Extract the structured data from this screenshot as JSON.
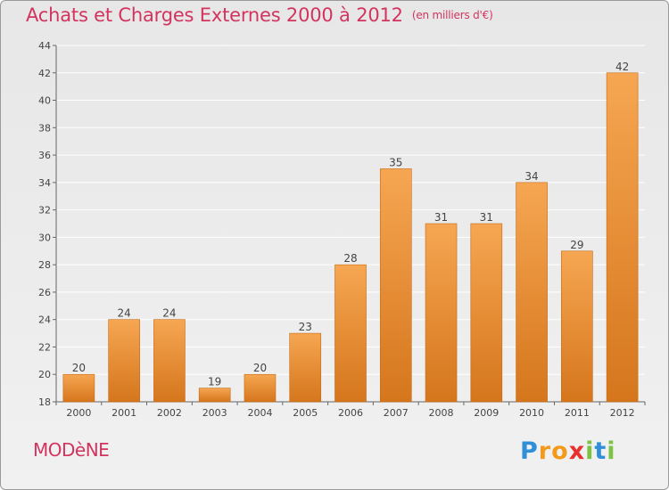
{
  "header": {
    "title": "Achats et Charges Externes 2000 à 2012",
    "subtitle": "(en milliers d'€)"
  },
  "footer": {
    "city": "MODèNE",
    "logo_letters": [
      "P",
      "r",
      "o",
      "x",
      "i",
      "t",
      "i"
    ]
  },
  "colors": {
    "bar_top": "#f6a652",
    "bar_bottom": "#d5761c",
    "title": "#d2345f",
    "grid": "#ffffff"
  },
  "chart_data": {
    "type": "bar",
    "title": "Achats et Charges Externes 2000 à 2012",
    "subtitle": "(en milliers d'€)",
    "xlabel": "",
    "ylabel": "",
    "categories": [
      "2000",
      "2001",
      "2002",
      "2003",
      "2004",
      "2005",
      "2006",
      "2007",
      "2008",
      "2009",
      "2010",
      "2011",
      "2012"
    ],
    "values": [
      20,
      24,
      24,
      19,
      20,
      23,
      28,
      35,
      31,
      31,
      34,
      29,
      42
    ],
    "ylim": [
      18,
      44
    ],
    "yticks": [
      18,
      20,
      22,
      24,
      26,
      28,
      30,
      32,
      34,
      36,
      38,
      40,
      42,
      44
    ],
    "grid": true,
    "legend": "none"
  }
}
